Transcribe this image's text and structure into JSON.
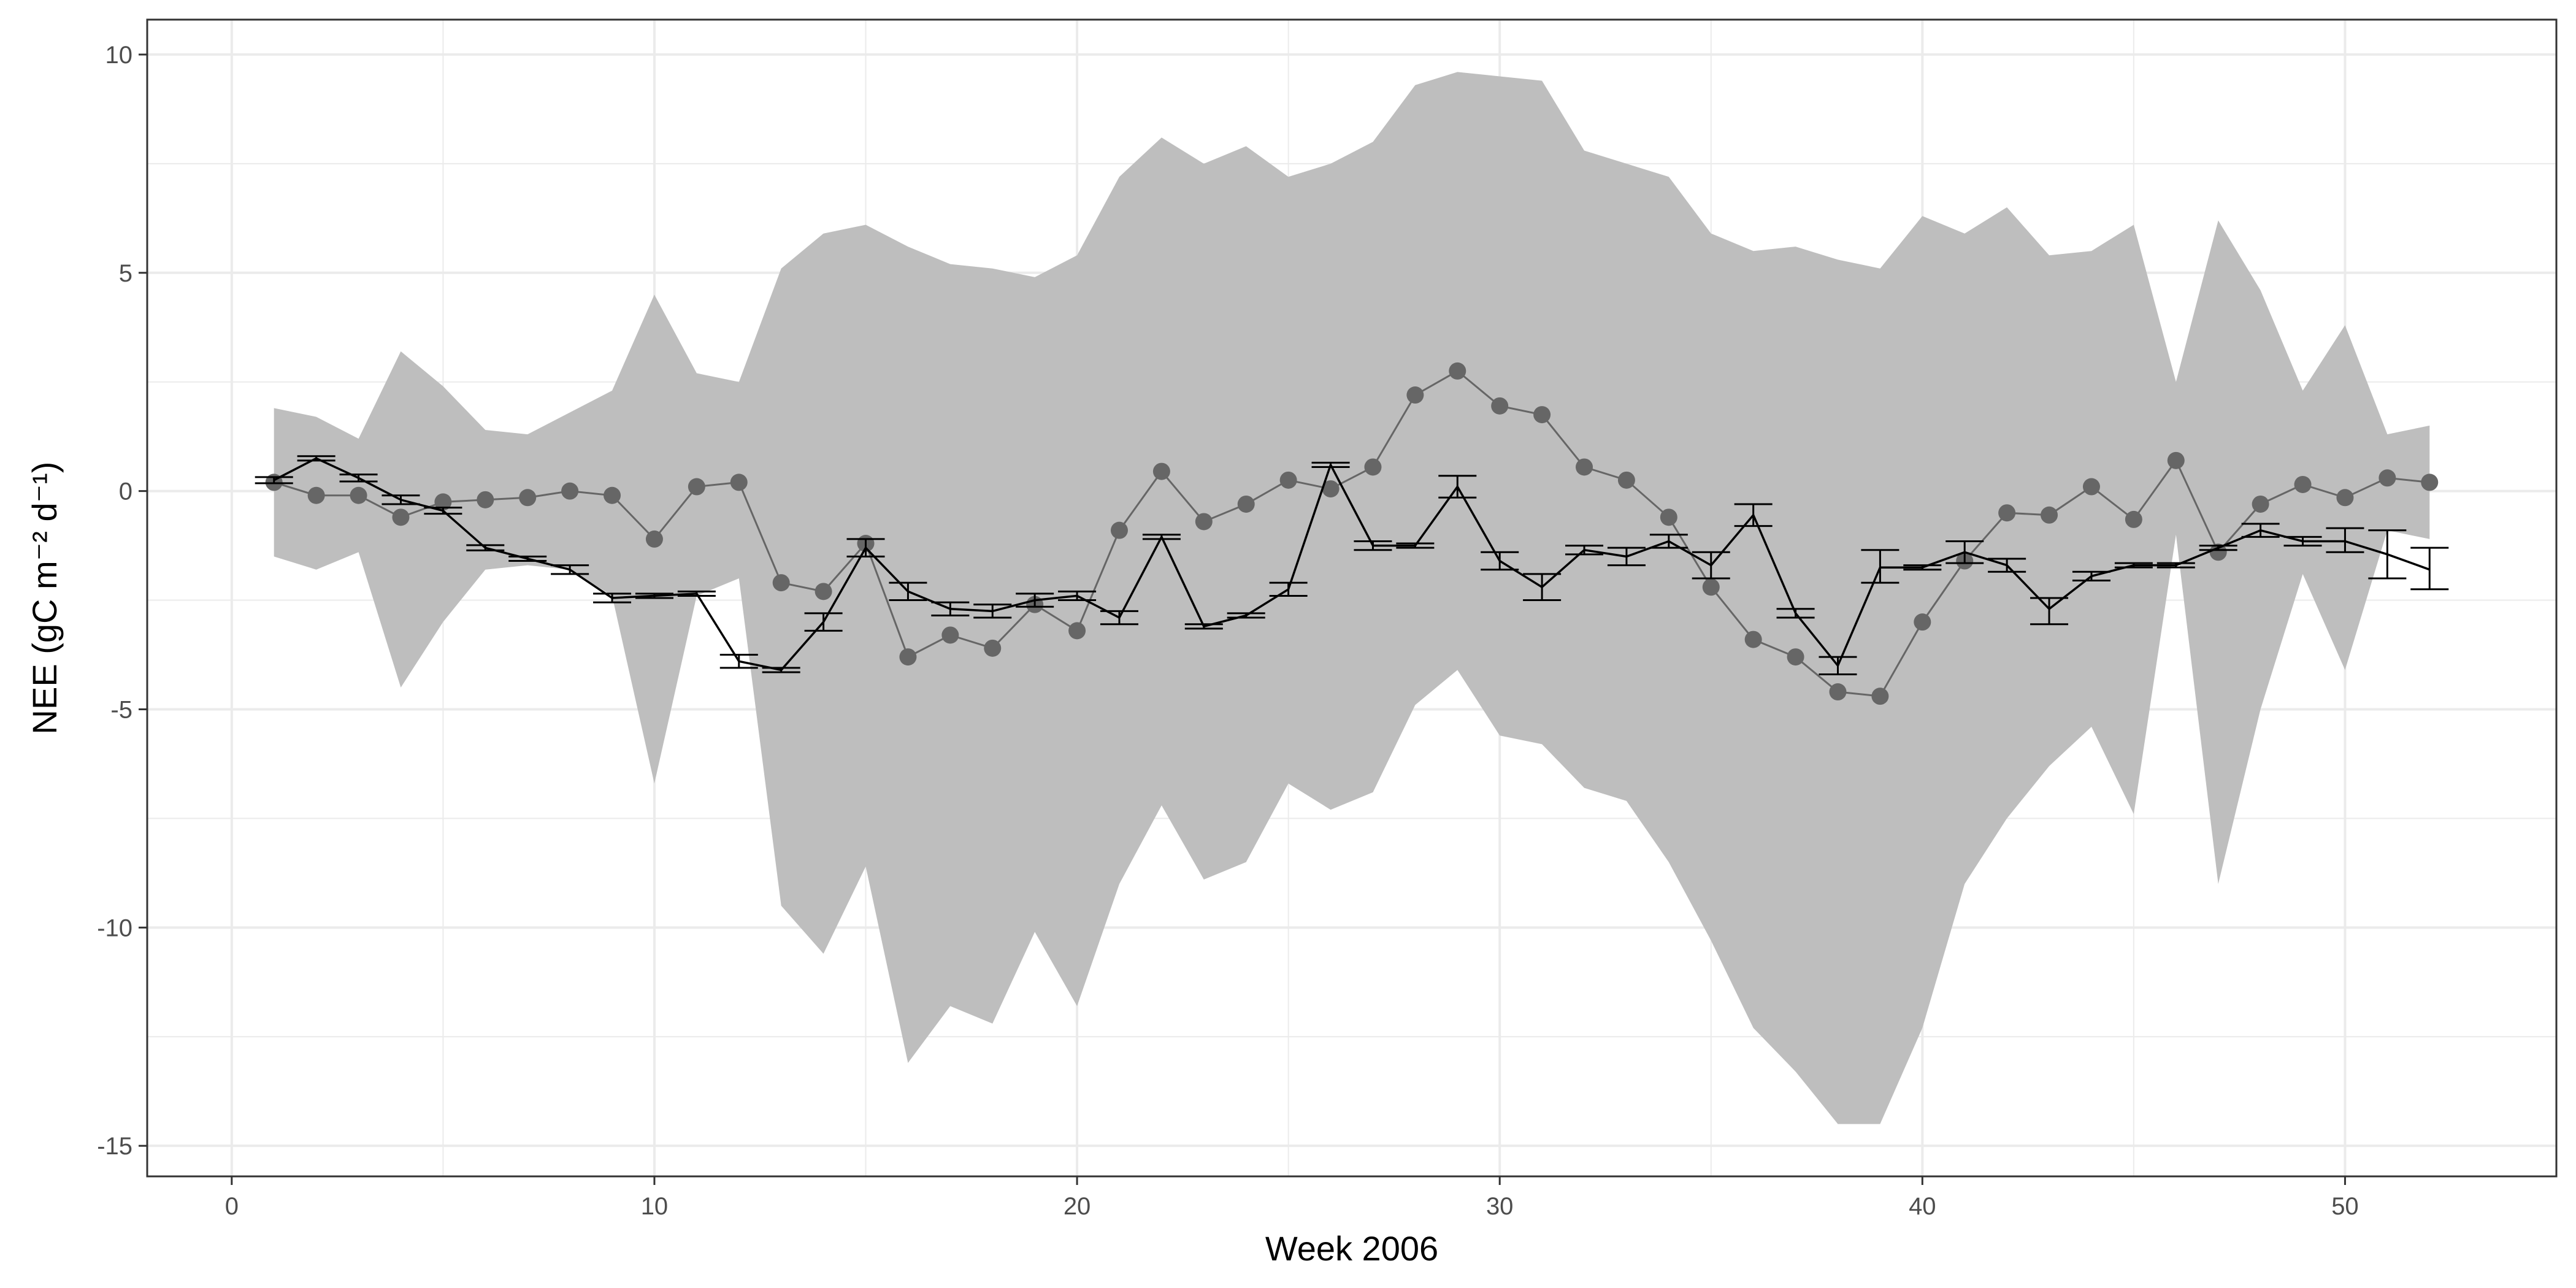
{
  "chart_data": {
    "type": "line",
    "xlabel": "Week 2006",
    "ylabel": "NEE (gC m⁻² d⁻¹)",
    "xlim": [
      -2,
      55
    ],
    "ylim": [
      -15.7,
      10.8
    ],
    "x_ticks": [
      0,
      10,
      20,
      30,
      40,
      50
    ],
    "x_tick_labels": [
      "0",
      "10",
      "20",
      "30",
      "40",
      "50"
    ],
    "y_ticks": [
      10,
      5,
      0,
      -5,
      -10,
      -15
    ],
    "y_tick_labels": [
      "10",
      "5",
      "0",
      "-5",
      "-10",
      "-15"
    ],
    "grid": true,
    "legend": "none",
    "colors": {
      "band": "#bebebe",
      "points": "#666666",
      "errorbar_line": "#000000",
      "grid": "#ebebeb",
      "panel_border": "#333333"
    },
    "band": {
      "x": [
        1,
        2,
        3,
        4,
        5,
        6,
        7,
        8,
        9,
        10,
        11,
        12,
        13,
        14,
        15,
        16,
        17,
        18,
        19,
        20,
        21,
        22,
        23,
        24,
        25,
        26,
        27,
        28,
        29,
        30,
        31,
        32,
        33,
        34,
        35,
        36,
        37,
        38,
        39,
        40,
        41,
        42,
        43,
        44,
        45,
        46,
        47,
        48,
        49,
        50,
        51,
        52
      ],
      "upper": [
        1.9,
        1.7,
        1.2,
        3.2,
        2.4,
        1.4,
        1.3,
        1.8,
        2.3,
        4.5,
        2.7,
        2.5,
        5.1,
        5.9,
        6.1,
        5.6,
        5.2,
        5.1,
        4.9,
        5.4,
        7.2,
        8.1,
        7.5,
        7.9,
        7.2,
        7.5,
        8.0,
        9.3,
        9.6,
        9.5,
        9.4,
        7.8,
        7.5,
        7.2,
        5.9,
        5.5,
        5.6,
        5.3,
        5.1,
        6.3,
        5.9,
        6.5,
        5.4,
        5.5,
        6.1,
        2.5,
        6.2,
        4.6,
        2.3,
        3.8,
        1.3,
        1.5
      ],
      "lower": [
        -1.5,
        -1.8,
        -1.4,
        -4.5,
        -3.0,
        -1.8,
        -1.7,
        -1.8,
        -2.4,
        -6.7,
        -2.4,
        -2.0,
        -9.5,
        -10.6,
        -8.6,
        -13.1,
        -11.8,
        -12.2,
        -10.1,
        -11.8,
        -9.0,
        -7.2,
        -8.9,
        -8.5,
        -6.7,
        -7.3,
        -6.9,
        -4.9,
        -4.1,
        -5.6,
        -5.8,
        -6.8,
        -7.1,
        -8.5,
        -10.3,
        -12.3,
        -13.3,
        -14.5,
        -14.5,
        -12.3,
        -9.0,
        -7.5,
        -6.3,
        -5.4,
        -7.4,
        -1.0,
        -9.0,
        -5.0,
        -1.9,
        -4.1,
        -0.9,
        -1.1
      ]
    },
    "series": [
      {
        "style": "points",
        "x": [
          1,
          2,
          3,
          4,
          5,
          6,
          7,
          8,
          9,
          10,
          11,
          12,
          13,
          14,
          15,
          16,
          17,
          18,
          19,
          20,
          21,
          22,
          23,
          24,
          25,
          26,
          27,
          28,
          29,
          30,
          31,
          32,
          33,
          34,
          35,
          36,
          37,
          38,
          39,
          40,
          41,
          42,
          43,
          44,
          45,
          46,
          47,
          48,
          49,
          50,
          51,
          52
        ],
        "y": [
          0.2,
          -0.1,
          -0.1,
          -0.6,
          -0.25,
          -0.2,
          -0.15,
          0.0,
          -0.1,
          -1.1,
          0.1,
          0.2,
          -2.1,
          -2.3,
          -1.2,
          -3.8,
          -3.3,
          -3.6,
          -2.6,
          -3.2,
          -0.9,
          0.45,
          -0.7,
          -0.3,
          0.25,
          0.05,
          0.55,
          2.2,
          2.75,
          1.95,
          1.75,
          0.55,
          0.25,
          -0.6,
          -2.2,
          -3.4,
          -3.8,
          -4.6,
          -4.7,
          -3.0,
          -1.6,
          -0.5,
          -0.55,
          0.1,
          -0.65,
          0.7,
          -1.4,
          -0.3,
          0.15,
          -0.15,
          0.3,
          0.2
        ]
      },
      {
        "style": "line-errorbar",
        "x": [
          1,
          2,
          3,
          4,
          5,
          6,
          7,
          8,
          9,
          10,
          11,
          12,
          13,
          14,
          15,
          16,
          17,
          18,
          19,
          20,
          21,
          22,
          23,
          24,
          25,
          26,
          27,
          28,
          29,
          30,
          31,
          32,
          33,
          34,
          35,
          36,
          37,
          38,
          39,
          40,
          41,
          42,
          43,
          44,
          45,
          46,
          47,
          48,
          49,
          50,
          51,
          52
        ],
        "y": [
          0.25,
          0.75,
          0.3,
          -0.2,
          -0.45,
          -1.3,
          -1.55,
          -1.8,
          -2.45,
          -2.4,
          -2.35,
          -3.9,
          -4.1,
          -3.0,
          -1.3,
          -2.3,
          -2.7,
          -2.75,
          -2.5,
          -2.4,
          -2.9,
          -1.05,
          -3.1,
          -2.85,
          -2.25,
          0.6,
          -1.25,
          -1.25,
          0.1,
          -1.6,
          -2.2,
          -1.35,
          -1.5,
          -1.15,
          -1.7,
          -0.55,
          -2.8,
          -4.0,
          -1.75,
          -1.75,
          -1.4,
          -1.7,
          -2.7,
          -1.95,
          -1.7,
          -1.7,
          -1.3,
          -0.9,
          -1.15,
          -1.15,
          -1.45,
          -1.8
        ],
        "ymin": [
          0.18,
          0.7,
          0.22,
          -0.3,
          -0.52,
          -1.36,
          -1.6,
          -1.9,
          -2.55,
          -2.45,
          -2.4,
          -4.05,
          -4.15,
          -3.2,
          -1.5,
          -2.5,
          -2.85,
          -2.9,
          -2.65,
          -2.5,
          -3.05,
          -1.1,
          -3.15,
          -2.9,
          -2.4,
          0.55,
          -1.35,
          -1.3,
          -0.15,
          -1.8,
          -2.5,
          -1.45,
          -1.7,
          -1.3,
          -2.0,
          -0.8,
          -2.9,
          -4.2,
          -2.1,
          -1.8,
          -1.65,
          -1.85,
          -3.05,
          -2.05,
          -1.75,
          -1.75,
          -1.35,
          -1.05,
          -1.25,
          -1.4,
          -2.0,
          -2.25
        ],
        "ymax": [
          0.32,
          0.8,
          0.38,
          -0.1,
          -0.38,
          -1.24,
          -1.5,
          -1.7,
          -2.35,
          -2.35,
          -2.3,
          -3.75,
          -4.05,
          -2.8,
          -1.1,
          -2.1,
          -2.55,
          -2.6,
          -2.35,
          -2.3,
          -2.75,
          -1.0,
          -3.05,
          -2.8,
          -2.1,
          0.65,
          -1.15,
          -1.2,
          0.35,
          -1.4,
          -1.9,
          -1.25,
          -1.3,
          -1.0,
          -1.4,
          -0.3,
          -2.7,
          -3.8,
          -1.35,
          -1.7,
          -1.15,
          -1.55,
          -2.45,
          -1.85,
          -1.65,
          -1.65,
          -1.25,
          -0.75,
          -1.05,
          -0.85,
          -0.9,
          -1.3
        ]
      }
    ]
  }
}
